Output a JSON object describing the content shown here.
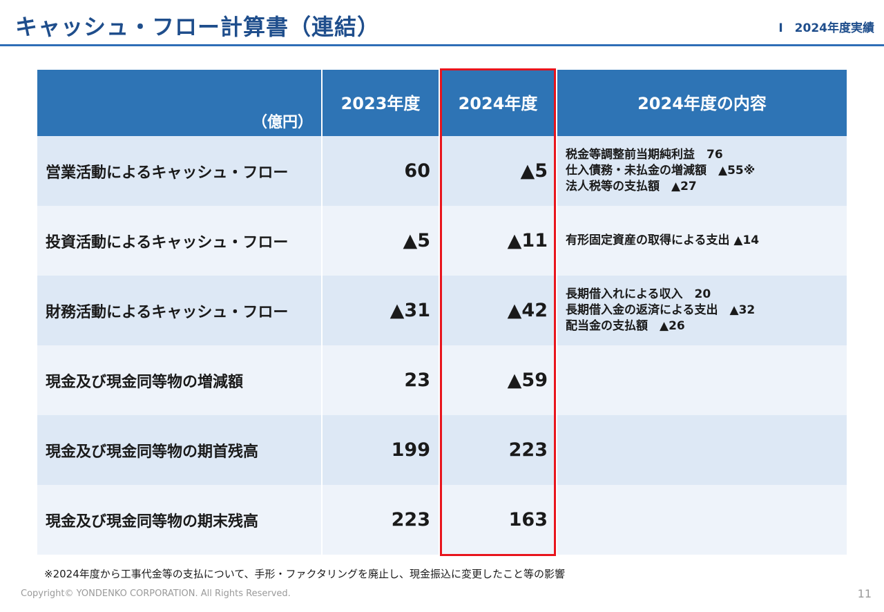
{
  "header": {
    "title": "キャッシュ・フロー計算書（連結）",
    "section": "Ⅰ　2024年度実績"
  },
  "table": {
    "unit_label": "（億円）",
    "columns": [
      "2023年度",
      "2024年度",
      "2024年度の内容"
    ],
    "rows": [
      {
        "label": "営業活動によるキャッシュ・フロー",
        "y2023": "60",
        "y2024": "▲5",
        "detail": [
          "税金等調整前当期純利益　76",
          "仕入債務・未払金の増減額　▲55※",
          "法人税等の支払額　▲27"
        ]
      },
      {
        "label": "投資活動によるキャッシュ・フロー",
        "y2023": "▲5",
        "y2024": "▲11",
        "detail": [
          "有形固定資産の取得による支出 ▲14"
        ]
      },
      {
        "label": "財務活動によるキャッシュ・フロー",
        "y2023": "▲31",
        "y2024": "▲42",
        "detail": [
          "長期借入れによる収入　20",
          "長期借入金の返済による支出　▲32",
          "配当金の支払額　▲26"
        ]
      },
      {
        "label": "現金及び現金同等物の増減額",
        "y2023": "23",
        "y2024": "▲59",
        "detail": []
      },
      {
        "label": "現金及び現金同等物の期首残高",
        "y2023": "199",
        "y2024": "223",
        "detail": []
      },
      {
        "label": "現金及び現金同等物の期末残高",
        "y2023": "223",
        "y2024": "163",
        "detail": []
      }
    ]
  },
  "footnote": "※2024年度から工事代金等の支払について、手形・ファクタリングを廃止し、現金振込に変更したこと等の影響",
  "footer": {
    "copyright": "Copyright© YONDENKO CORPORATION. All Rights Reserved.",
    "page_number": "11"
  },
  "colors": {
    "title": "#1f4e8c",
    "header_bg": "#2e74b5",
    "row_odd": "#dde8f5",
    "row_even": "#eef3fa",
    "highlight": "#e8141c"
  }
}
